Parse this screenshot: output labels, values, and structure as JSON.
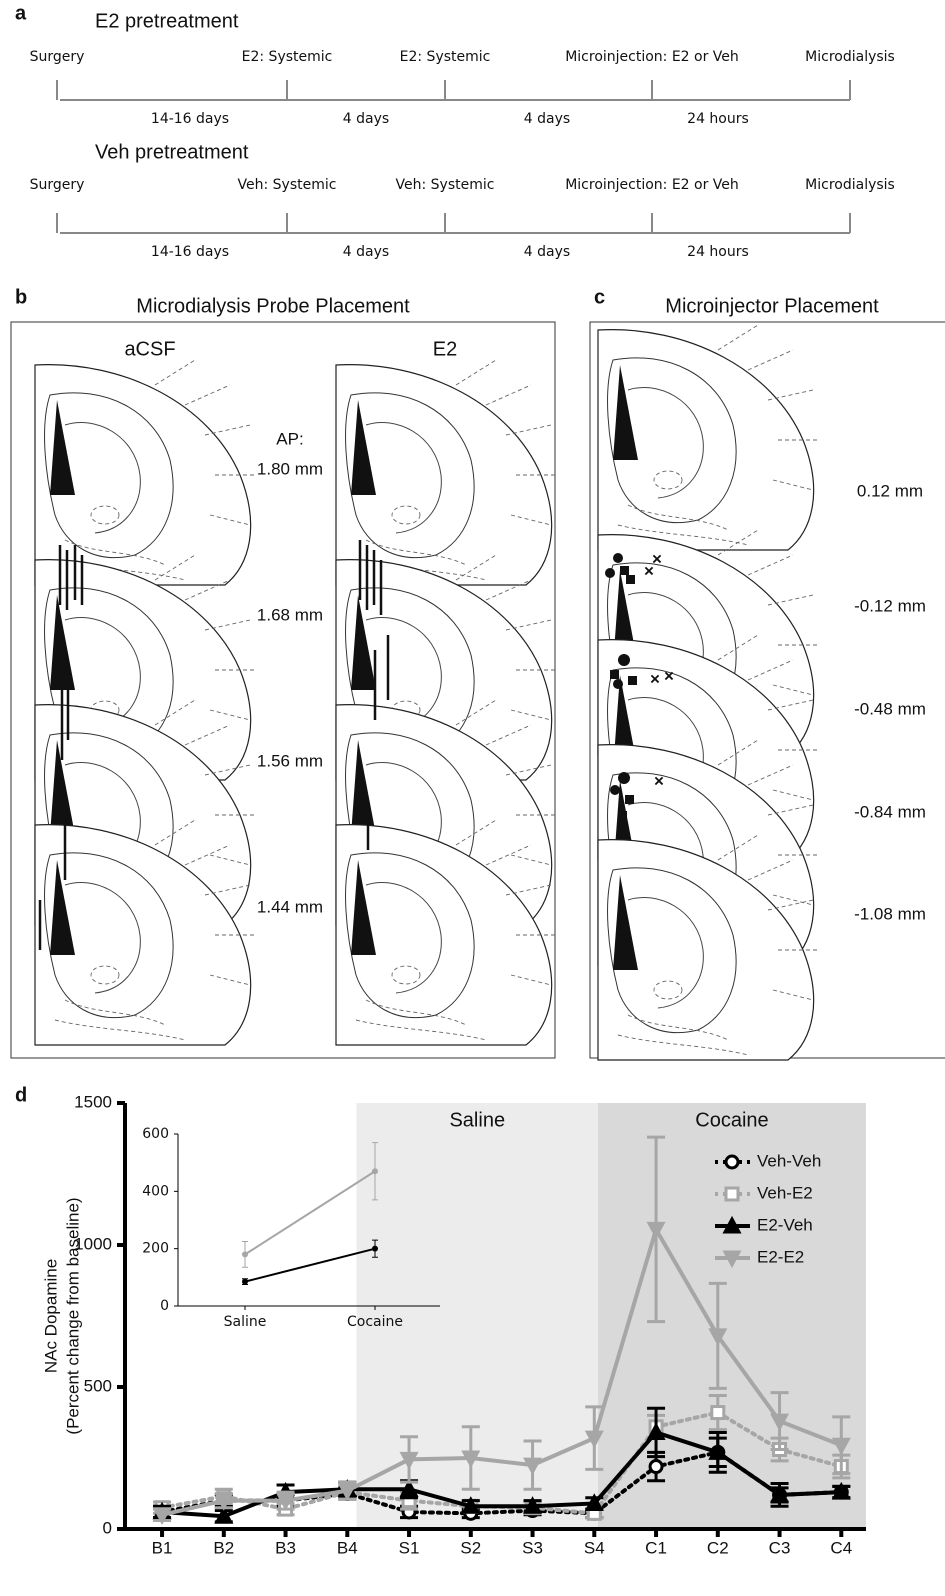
{
  "panel_a": {
    "letter": "a",
    "timelines": [
      {
        "title": "E2 pretreatment",
        "events": [
          "Surgery",
          "E2: Systemic",
          "E2: Systemic",
          "Microinjection: E2 or Veh",
          "Microdialysis"
        ],
        "durations": [
          "14-16 days",
          "4 days",
          "4 days",
          "24 hours"
        ]
      },
      {
        "title": "Veh pretreatment",
        "events": [
          "Surgery",
          "Veh: Systemic",
          "Veh: Systemic",
          "Microinjection: E2 or Veh",
          "Microdialysis"
        ],
        "durations": [
          "14-16 days",
          "4 days",
          "4 days",
          "24 hours"
        ]
      }
    ]
  },
  "panel_b": {
    "letter": "b",
    "title": "Microdialysis Probe Placement",
    "columns": [
      "aCSF",
      "E2"
    ],
    "ap_label": "AP:",
    "levels": [
      "1.80 mm",
      "1.68 mm",
      "1.56 mm",
      "1.44 mm"
    ]
  },
  "panel_c": {
    "letter": "c",
    "title": "Microinjector Placement",
    "levels": [
      "0.12 mm",
      "-0.12 mm",
      "-0.48 mm",
      "-0.84 mm",
      "-1.08 mm"
    ]
  },
  "chart_data": [
    {
      "type": "line",
      "letter": "d",
      "ylabel": [
        "NAc Dopamine",
        "(Percent change from baseline)"
      ],
      "categories": [
        "B1",
        "B2",
        "B3",
        "B4",
        "S1",
        "S2",
        "S3",
        "S4",
        "C1",
        "C2",
        "C3",
        "C4"
      ],
      "regions": [
        {
          "label": "Saline"
        },
        {
          "label": "Cocaine"
        }
      ],
      "ylim": [
        0,
        1500
      ],
      "yticks": [
        0,
        500,
        1000,
        1500
      ],
      "series": [
        {
          "name": "Veh-Veh",
          "color": "#000000",
          "line_style": "dotted",
          "marker": "circle-open",
          "values": [
            60,
            100,
            100,
            125,
            60,
            55,
            65,
            55,
            220,
            270,
            120,
            130
          ],
          "errors": [
            20,
            20,
            20,
            20,
            20,
            15,
            15,
            15,
            50,
            50,
            25,
            20
          ]
        },
        {
          "name": "Veh-E2",
          "color": "#a6a6a6",
          "line_style": "dotted",
          "marker": "square-open",
          "values": [
            75,
            115,
            70,
            130,
            100,
            80,
            75,
            55,
            360,
            410,
            280,
            220
          ],
          "errors": [
            20,
            25,
            20,
            25,
            30,
            20,
            20,
            15,
            40,
            60,
            40,
            40
          ]
        },
        {
          "name": "E2-Veh",
          "color": "#000000",
          "line_style": "solid",
          "marker": "triangle",
          "values": [
            60,
            45,
            130,
            140,
            140,
            80,
            80,
            90,
            340,
            270,
            120,
            130
          ],
          "errors": [
            20,
            20,
            25,
            25,
            30,
            20,
            20,
            20,
            85,
            70,
            40,
            20
          ]
        },
        {
          "name": "E2-E2",
          "color": "#a6a6a6",
          "line_style": "solid",
          "marker": "triangle-down",
          "values": [
            50,
            100,
            100,
            135,
            245,
            250,
            225,
            320,
            1055,
            680,
            380,
            295
          ],
          "errors": [
            20,
            25,
            30,
            30,
            80,
            110,
            85,
            110,
            325,
            185,
            100,
            100
          ]
        }
      ]
    },
    {
      "type": "line",
      "categories": [
        "Saline",
        "Cocaine"
      ],
      "ylim": [
        0,
        600
      ],
      "yticks": [
        0,
        200,
        400,
        600
      ],
      "series": [
        {
          "color": "#a6a6a6",
          "values": [
            180,
            470
          ],
          "errors": [
            45,
            100
          ]
        },
        {
          "color": "#000000",
          "values": [
            85,
            200
          ],
          "errors": [
            10,
            30
          ]
        }
      ]
    }
  ]
}
